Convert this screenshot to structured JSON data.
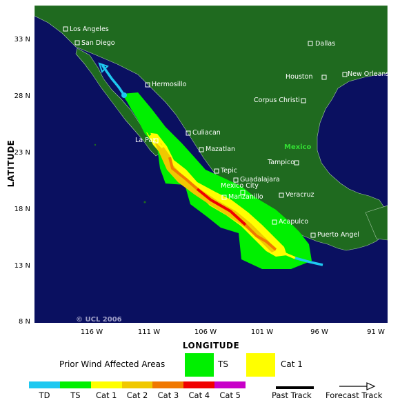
{
  "map": {
    "copyright": "© UCL 2006",
    "country_label": "Mexico",
    "x_axis_title": "LONGITUDE",
    "y_axis_title": "LATITUDE",
    "lat_ticks": [
      "33 N",
      "28 N",
      "23 N",
      "18 N",
      "13 N",
      "8 N"
    ],
    "lon_ticks": [
      "116 W",
      "111 W",
      "106 W",
      "101 W",
      "96 W",
      "91 W"
    ],
    "cities": [
      {
        "name": "Los Angeles"
      },
      {
        "name": "San Diego"
      },
      {
        "name": "Dallas"
      },
      {
        "name": "Hermosillo"
      },
      {
        "name": "Houston"
      },
      {
        "name": "New Orleans"
      },
      {
        "name": "Corpus Christi"
      },
      {
        "name": "Culiacan"
      },
      {
        "name": "La Paz"
      },
      {
        "name": "Mazatlan"
      },
      {
        "name": "Tampico"
      },
      {
        "name": "Tepic"
      },
      {
        "name": "Guadalajara"
      },
      {
        "name": "Mexico City"
      },
      {
        "name": "Veracruz"
      },
      {
        "name": "Manzanillo"
      },
      {
        "name": "Acapulco"
      },
      {
        "name": "Puerto Angel"
      }
    ],
    "colors": {
      "ocean": "#0a1060",
      "land": "#1f6a1f",
      "td": "#1ec8f0",
      "ts": "#00f000",
      "cat1": "#ffff00",
      "cat2": "#f0c800",
      "cat3": "#f07800",
      "cat4": "#f00000",
      "cat5": "#c800c8"
    }
  },
  "legend": {
    "prior_title": "Prior Wind Affected Areas",
    "prior_items": [
      {
        "label": "TS",
        "color": "#00f000"
      },
      {
        "label": "Cat 1",
        "color": "#ffff00"
      }
    ],
    "scale_items": [
      {
        "label": "TD",
        "color": "#1ec8f0"
      },
      {
        "label": "TS",
        "color": "#00f000"
      },
      {
        "label": "Cat 1",
        "color": "#ffff00"
      },
      {
        "label": "Cat 2",
        "color": "#f0c800"
      },
      {
        "label": "Cat 3",
        "color": "#f07800"
      },
      {
        "label": "Cat 4",
        "color": "#f00000"
      },
      {
        "label": "Cat 5",
        "color": "#c800c8"
      }
    ],
    "past_track": "Past Track",
    "forecast_track": "Forecast Track"
  }
}
